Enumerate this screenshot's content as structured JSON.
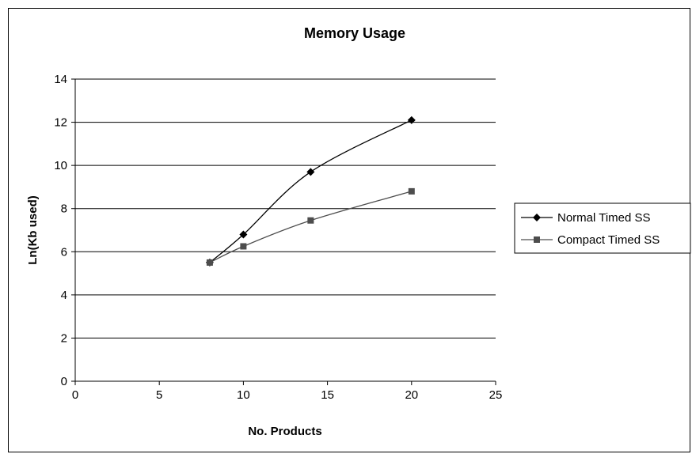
{
  "chart_data": {
    "type": "line",
    "title": "Memory Usage",
    "xlabel": "No. Products",
    "ylabel": "Ln(Kb used)",
    "xlim": [
      0,
      25
    ],
    "ylim": [
      0,
      14
    ],
    "x_ticks": [
      0,
      5,
      10,
      15,
      20,
      25
    ],
    "y_ticks": [
      0,
      2,
      4,
      6,
      8,
      10,
      12,
      14
    ],
    "grid": "horizontal",
    "legend_position": "right",
    "series": [
      {
        "name": "Normal Timed SS",
        "marker": "diamond",
        "color": "#000000",
        "x": [
          8,
          10,
          14,
          20
        ],
        "y": [
          5.5,
          6.8,
          9.7,
          12.1
        ]
      },
      {
        "name": "Compact Timed SS",
        "marker": "square",
        "color": "#4d4d4d",
        "x": [
          8,
          10,
          14,
          20
        ],
        "y": [
          5.5,
          6.25,
          7.45,
          8.8
        ]
      }
    ]
  }
}
